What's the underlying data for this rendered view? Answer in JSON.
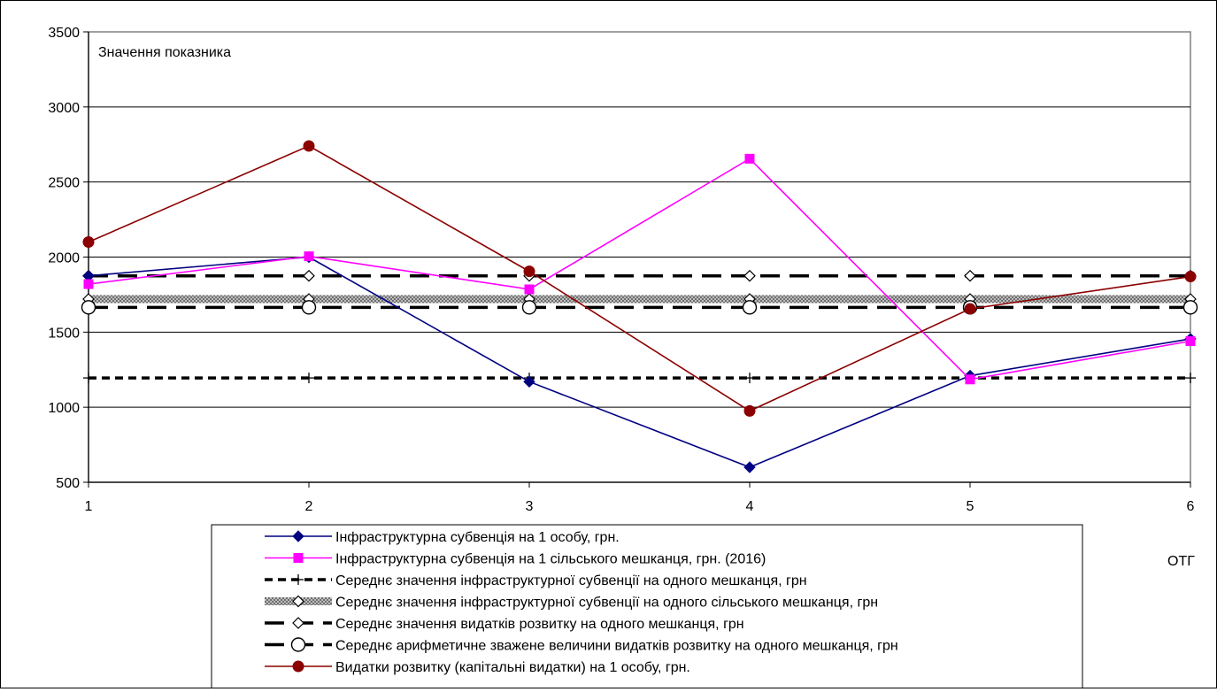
{
  "chart_data": {
    "type": "line",
    "title": "",
    "ylabel": "Значення показника",
    "xlabel": "ОТГ",
    "x": [
      1,
      2,
      3,
      4,
      5,
      6
    ],
    "xlim": [
      1,
      6
    ],
    "ylim": [
      500,
      3500
    ],
    "yticks": [
      500,
      1000,
      1500,
      2000,
      2500,
      3000,
      3500
    ],
    "grid": "horizontal",
    "legend_position": "bottom",
    "series": [
      {
        "name": "Інфраструктурна субвенція на 1 особу, грн.",
        "values": [
          1875,
          2000,
          1170,
          600,
          1210,
          1455
        ],
        "color": "#000080",
        "marker": "diamond",
        "style": "solid"
      },
      {
        "name": "Інфраструктурна субвенція на 1 сільського мешканця, грн. (2016)",
        "values": [
          1820,
          2005,
          1785,
          2655,
          1185,
          1440
        ],
        "color": "#ff00ff",
        "marker": "square",
        "style": "solid"
      },
      {
        "name": "Середнє значення інфраструктурної субвенції на одного мешканця, грн",
        "values": [
          1195,
          1195,
          1195,
          1195,
          1195,
          1195
        ],
        "color": "#000000",
        "marker": "plus",
        "style": "short-dash"
      },
      {
        "name": "Середнє значення інфраструктурної субвенції на одного сільського мешканця, грн",
        "values": [
          1720,
          1720,
          1720,
          1720,
          1720,
          1720
        ],
        "color": "#999999",
        "marker": "open-diamond",
        "style": "hatched-band"
      },
      {
        "name": "Середнє значення видатків розвитку на одного мешканця, грн",
        "values": [
          1875,
          1875,
          1875,
          1875,
          1875,
          1875
        ],
        "color": "#000000",
        "marker": "open-diamond",
        "style": "long-dash"
      },
      {
        "name": "Середнє арифметичне зважене величини видатків розвитку на одного мешканця, грн",
        "values": [
          1665,
          1665,
          1665,
          1665,
          1665,
          1665
        ],
        "color": "#000000",
        "marker": "open-circle",
        "style": "long-dash"
      },
      {
        "name": "Видатки розвитку (капітальні видатки) на 1 особу, грн.",
        "values": [
          2100,
          2740,
          1905,
          975,
          1655,
          1870
        ],
        "color": "#8b0000",
        "marker": "circle",
        "style": "solid"
      }
    ]
  }
}
